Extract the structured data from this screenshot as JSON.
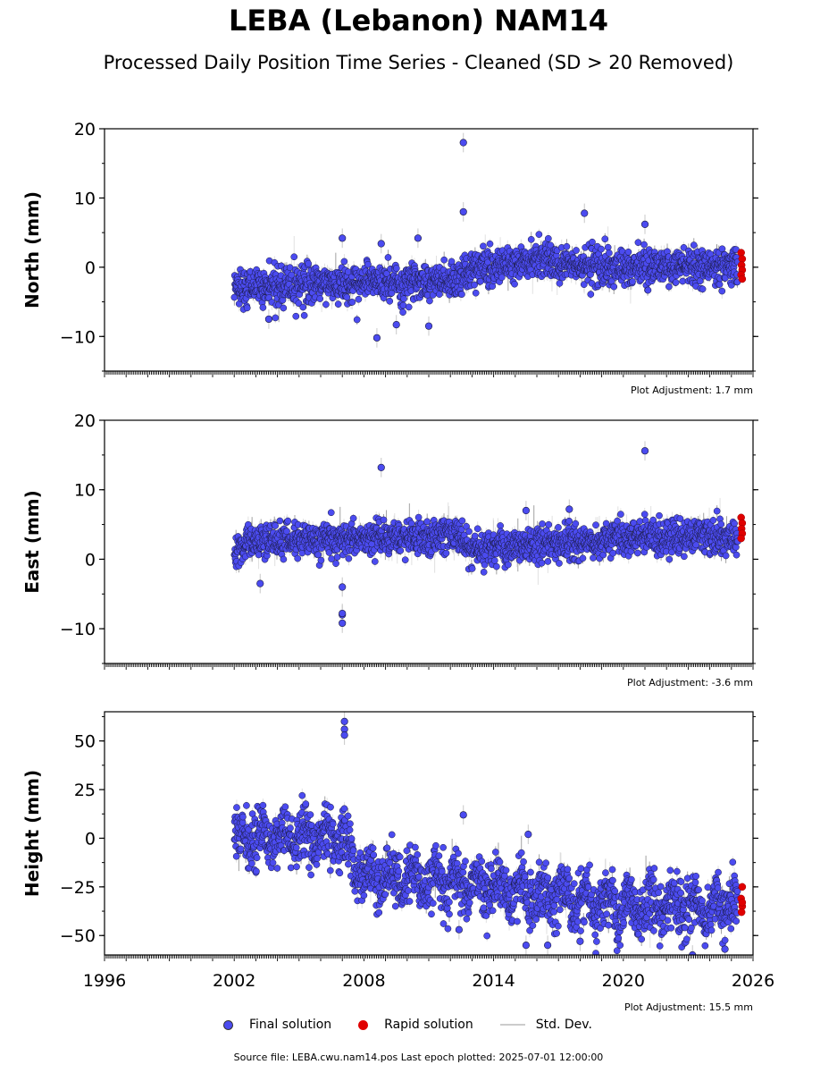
{
  "title": "LEBA (Lebanon) NAM14",
  "subtitle": "Processed Daily Position Time Series - Cleaned (SD > 20 Removed)",
  "source_text": "Source file: LEBA.cwu.nam14.pos  Last epoch plotted: 2025-07-01 12:00:00",
  "legend": {
    "final": "Final solution",
    "rapid": "Rapid solution",
    "std": "Std. Dev."
  },
  "colors": {
    "final": "#4b4bf0",
    "rapid": "#e00000",
    "std": "#c8c8c8"
  },
  "chart_data": [
    {
      "type": "scatter",
      "ylabel": "North (mm)",
      "xlim": [
        1996,
        2026
      ],
      "ylim": [
        -15,
        20
      ],
      "yticks": [
        -10,
        0,
        10,
        20
      ],
      "ytick_labels": [
        "−10",
        "0",
        "10",
        "20"
      ],
      "annotation": "Plot Adjustment: 1.7 mm",
      "data_start": 2002.0,
      "data_end": 2025.5,
      "rapid_start": 2025.3,
      "trend": [
        [
          2002,
          -3
        ],
        [
          2012.5,
          -1.8
        ],
        [
          2012.8,
          -0.5
        ],
        [
          2016,
          1
        ],
        [
          2018.5,
          0
        ],
        [
          2025.5,
          0
        ]
      ],
      "noise_sd": 1.3,
      "outliers": [
        [
          2012.6,
          18
        ],
        [
          2012.6,
          8
        ],
        [
          2018.2,
          7.8
        ],
        [
          2021,
          6.2
        ],
        [
          2007,
          4.2
        ],
        [
          2008.8,
          3.4
        ],
        [
          2010.5,
          4.2
        ],
        [
          2008.6,
          -10.2
        ],
        [
          2011,
          -8.5
        ],
        [
          2009.5,
          -8.3
        ],
        [
          2003.6,
          -7.5
        ]
      ],
      "rapid_values": [
        [
          2025.45,
          2.1
        ],
        [
          2025.5,
          1.2
        ],
        [
          2025.47,
          0.3
        ],
        [
          2025.5,
          -0.4
        ],
        [
          2025.45,
          -1.1
        ],
        [
          2025.5,
          -1.7
        ]
      ]
    },
    {
      "type": "scatter",
      "ylabel": "East (mm)",
      "xlim": [
        1996,
        2026
      ],
      "ylim": [
        -15,
        20
      ],
      "yticks": [
        -10,
        0,
        10,
        20
      ],
      "ytick_labels": [
        "−10",
        "0",
        "10",
        "20"
      ],
      "annotation": "Plot Adjustment: -3.6 mm",
      "data_start": 2002.0,
      "data_end": 2025.5,
      "rapid_start": 2025.3,
      "trend": [
        [
          2002,
          1
        ],
        [
          2002.5,
          2.5
        ],
        [
          2012.5,
          3.5
        ],
        [
          2012.8,
          1.5
        ],
        [
          2018,
          2.5
        ],
        [
          2022,
          3.5
        ],
        [
          2025.5,
          3
        ]
      ],
      "noise_sd": 1.2,
      "outliers": [
        [
          2008.8,
          13.2
        ],
        [
          2021,
          15.6
        ],
        [
          2007,
          -8
        ],
        [
          2007,
          -9.2
        ],
        [
          2007,
          -7.8
        ],
        [
          2007,
          -4
        ],
        [
          2003.2,
          -3.5
        ],
        [
          2015.5,
          7
        ],
        [
          2017.5,
          7.2
        ]
      ],
      "rapid_values": [
        [
          2025.45,
          6
        ],
        [
          2025.5,
          5.2
        ],
        [
          2025.47,
          4.4
        ],
        [
          2025.5,
          3.7
        ],
        [
          2025.45,
          3
        ]
      ]
    },
    {
      "type": "scatter",
      "ylabel": "Height (mm)",
      "xlim": [
        1996,
        2026
      ],
      "ylim": [
        -60,
        65
      ],
      "yticks": [
        -50,
        -25,
        0,
        25,
        50
      ],
      "ytick_labels": [
        "−50",
        "−25",
        "0",
        "25",
        "50"
      ],
      "xticks": [
        1996,
        2002,
        2008,
        2014,
        2020,
        2026
      ],
      "xtick_labels": [
        "1996",
        "2002",
        "2008",
        "2014",
        "2020",
        "2026"
      ],
      "annotation": "Plot Adjustment: 15.5 mm",
      "data_start": 2002.0,
      "data_end": 2025.5,
      "rapid_start": 2025.3,
      "trend": [
        [
          2002,
          0
        ],
        [
          2007,
          0
        ],
        [
          2008,
          -20
        ],
        [
          2012,
          -22
        ],
        [
          2016,
          -28
        ],
        [
          2020,
          -35
        ],
        [
          2025.5,
          -35
        ]
      ],
      "noise_sd": 7,
      "seasonal_amp": 6,
      "outliers": [
        [
          2007.1,
          60
        ],
        [
          2007.1,
          56
        ],
        [
          2007.1,
          53
        ],
        [
          2012.6,
          12
        ],
        [
          2012.4,
          -47
        ],
        [
          2015.5,
          -55
        ],
        [
          2016.5,
          -55
        ],
        [
          2018,
          -53
        ],
        [
          2023.2,
          -60
        ],
        [
          2024.7,
          -57
        ],
        [
          2015.6,
          2
        ]
      ],
      "rapid_values": [
        [
          2025.5,
          -25
        ],
        [
          2025.45,
          -31
        ],
        [
          2025.5,
          -35
        ],
        [
          2025.47,
          -38
        ],
        [
          2025.5,
          -33
        ]
      ]
    }
  ]
}
